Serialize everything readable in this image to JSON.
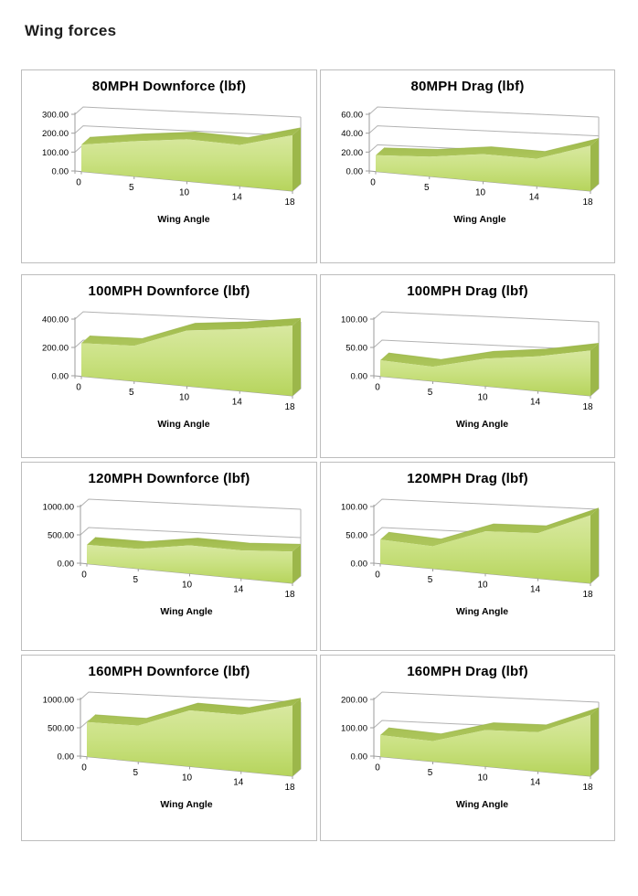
{
  "page": {
    "heading": "Wing forces"
  },
  "x_axis": {
    "title": "Wing Angle",
    "categories": [
      "0",
      "5",
      "10",
      "14",
      "18"
    ]
  },
  "chart_data": [
    {
      "type": "area",
      "title": "80MPH Downforce (lbf)",
      "xlabel": "Wing Angle",
      "x": [
        0,
        5,
        10,
        14,
        18
      ],
      "values": [
        140,
        160,
        170,
        150,
        185
      ],
      "y_ticks": [
        "0.00",
        "100.00",
        "200.00",
        "300.00"
      ],
      "ylim": [
        0,
        300
      ],
      "grid": true,
      "legend": "none"
    },
    {
      "type": "area",
      "title": "80MPH Drag (lbf)",
      "xlabel": "Wing Angle",
      "x": [
        0,
        5,
        10,
        14,
        18
      ],
      "values": [
        17,
        18,
        22,
        20,
        30
      ],
      "y_ticks": [
        "0.00",
        "20.00",
        "40.00",
        "60.00"
      ],
      "ylim": [
        0,
        60
      ],
      "grid": true,
      "legend": "none"
    },
    {
      "type": "area",
      "title": "100MPH Downforce (lbf)",
      "xlabel": "Wing Angle",
      "x": [
        0,
        5,
        10,
        14,
        18
      ],
      "values": [
        230,
        215,
        300,
        300,
        310
      ],
      "y_ticks": [
        "0.00",
        "200.00",
        "400.00"
      ],
      "ylim": [
        0,
        400
      ],
      "grid": true,
      "legend": "none"
    },
    {
      "type": "area",
      "title": "100MPH Drag (lbf)",
      "xlabel": "Wing Angle",
      "x": [
        0,
        5,
        10,
        14,
        18
      ],
      "values": [
        28,
        22,
        37,
        42,
        50
      ],
      "y_ticks": [
        "0.00",
        "50.00",
        "100.00"
      ],
      "ylim": [
        0,
        100
      ],
      "grid": true,
      "legend": "none"
    },
    {
      "type": "area",
      "title": "120MPH Downforce (lbf)",
      "xlabel": "Wing Angle",
      "x": [
        0,
        5,
        10,
        14,
        18
      ],
      "values": [
        330,
        300,
        380,
        340,
        350
      ],
      "y_ticks": [
        "0.00",
        "500.00",
        "1000.00"
      ],
      "ylim": [
        0,
        1000
      ],
      "grid": true,
      "legend": "none"
    },
    {
      "type": "area",
      "title": "120MPH Drag (lbf)",
      "xlabel": "Wing Angle",
      "x": [
        0,
        5,
        10,
        14,
        18
      ],
      "values": [
        42,
        34,
        57,
        55,
        75
      ],
      "y_ticks": [
        "0.00",
        "50.00",
        "100.00"
      ],
      "ylim": [
        0,
        100
      ],
      "grid": true,
      "legend": "none"
    },
    {
      "type": "area",
      "title": "160MPH Downforce (lbf)",
      "xlabel": "Wing Angle",
      "x": [
        0,
        5,
        10,
        14,
        18
      ],
      "values": [
        600,
        545,
        755,
        685,
        780
      ],
      "y_ticks": [
        "0.00",
        "500.00",
        "1000.00"
      ],
      "ylim": [
        0,
        1000
      ],
      "grid": true,
      "legend": "none"
    },
    {
      "type": "area",
      "title": "160MPH Drag (lbf)",
      "xlabel": "Wing Angle",
      "x": [
        0,
        5,
        10,
        14,
        18
      ],
      "values": [
        75,
        62,
        98,
        95,
        135
      ],
      "y_ticks": [
        "0.00",
        "100.00",
        "200.00"
      ],
      "ylim": [
        0,
        200
      ],
      "grid": true,
      "legend": "none"
    }
  ],
  "colors": {
    "area_front_top": "#d8e8a0",
    "area_front_mid": "#cbe284",
    "area_front_bottom": "#b6d45c",
    "area_band_dark": "#9eb94a",
    "area_band_light": "#adc65c",
    "area_side": "#9cb74a",
    "grid_line": "#b2b2b2",
    "axis_line": "#9d9d9d",
    "panel_border": "#bdbdbd",
    "text": "#000000"
  }
}
